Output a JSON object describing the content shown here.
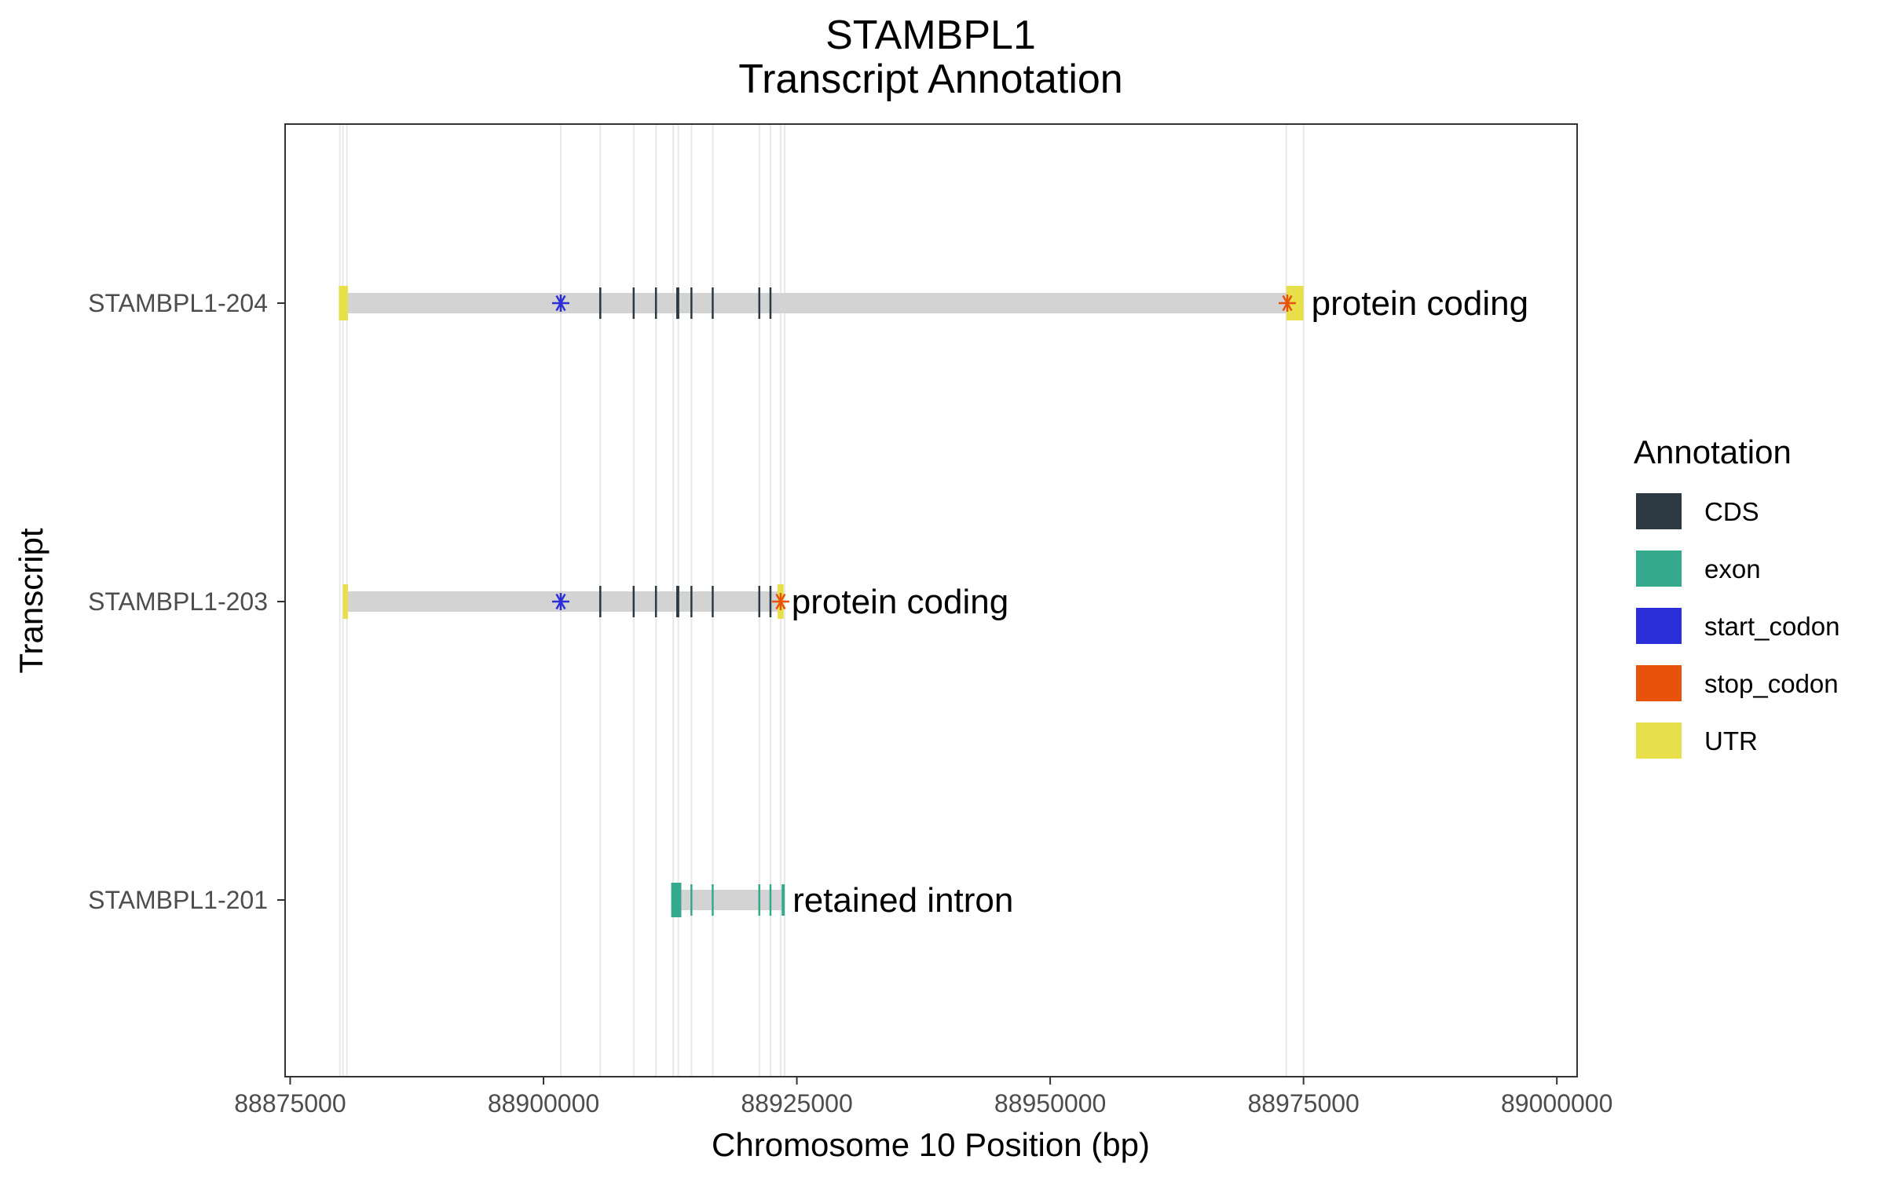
{
  "chart_data": {
    "type": "gene-track",
    "title_lines": [
      "STAMBPL1",
      "Transcript Annotation"
    ],
    "xlabel": "Chromosome 10 Position (bp)",
    "ylabel": "Transcript",
    "xlim": [
      88874500,
      89002000
    ],
    "x_ticks": [
      88875000,
      88900000,
      88925000,
      88950000,
      88975000,
      89000000
    ],
    "x_tick_labels": [
      "88875000",
      "88900000",
      "88925000",
      "88950000",
      "88975000",
      "89000000"
    ],
    "grid": "vertical lines at feature positions",
    "colors": {
      "CDS": "#2d3a44",
      "exon": "#35a98e",
      "start_codon": "#2b2fd9",
      "stop_codon": "#e8530c",
      "UTR": "#e8e04a",
      "intron": "#d3d3d3",
      "grid": "#e8e8e8",
      "panel_border": "#333333"
    },
    "legend": {
      "title": "Annotation",
      "position": "right",
      "items": [
        {
          "key": "CDS",
          "label": "CDS"
        },
        {
          "key": "exon",
          "label": "exon"
        },
        {
          "key": "start_codon",
          "label": "start_codon"
        },
        {
          "key": "stop_codon",
          "label": "stop_codon"
        },
        {
          "key": "UTR",
          "label": "UTR"
        }
      ]
    },
    "transcripts": [
      {
        "name": "STAMBPL1-204",
        "biotype": "protein coding",
        "start": 88880000,
        "end": 88975000,
        "features": [
          {
            "type": "UTR",
            "start": 88879800,
            "end": 88880700
          },
          {
            "type": "CDS",
            "start": 88905500,
            "end": 88905700
          },
          {
            "type": "CDS",
            "start": 88908800,
            "end": 88908950
          },
          {
            "type": "CDS",
            "start": 88911000,
            "end": 88911150
          },
          {
            "type": "CDS",
            "start": 88913100,
            "end": 88913400
          },
          {
            "type": "CDS",
            "start": 88914500,
            "end": 88914650
          },
          {
            "type": "CDS",
            "start": 88916600,
            "end": 88916750
          },
          {
            "type": "CDS",
            "start": 88921200,
            "end": 88921350
          },
          {
            "type": "CDS",
            "start": 88922300,
            "end": 88922450
          },
          {
            "type": "UTR",
            "start": 88973300,
            "end": 88975000
          }
        ],
        "start_codon": 88901700,
        "stop_codon": 88973400
      },
      {
        "name": "STAMBPL1-203",
        "biotype": "protein coding",
        "start": 88880200,
        "end": 88923700,
        "features": [
          {
            "type": "UTR",
            "start": 88880200,
            "end": 88880700
          },
          {
            "type": "CDS",
            "start": 88905500,
            "end": 88905700
          },
          {
            "type": "CDS",
            "start": 88908800,
            "end": 88908950
          },
          {
            "type": "CDS",
            "start": 88911000,
            "end": 88911150
          },
          {
            "type": "CDS",
            "start": 88913100,
            "end": 88913400
          },
          {
            "type": "CDS",
            "start": 88914500,
            "end": 88914650
          },
          {
            "type": "CDS",
            "start": 88916600,
            "end": 88916750
          },
          {
            "type": "CDS",
            "start": 88921200,
            "end": 88921350
          },
          {
            "type": "CDS",
            "start": 88922300,
            "end": 88922450
          },
          {
            "type": "UTR",
            "start": 88923100,
            "end": 88923700
          }
        ],
        "start_codon": 88901700,
        "stop_codon": 88923400
      },
      {
        "name": "STAMBPL1-201",
        "biotype": "retained intron",
        "start": 88912600,
        "end": 88923800,
        "features": [
          {
            "type": "exon",
            "start": 88912600,
            "end": 88913600
          },
          {
            "type": "exon",
            "start": 88914500,
            "end": 88914650
          },
          {
            "type": "exon",
            "start": 88916600,
            "end": 88916750
          },
          {
            "type": "exon",
            "start": 88921200,
            "end": 88921350
          },
          {
            "type": "exon",
            "start": 88922300,
            "end": 88922450
          },
          {
            "type": "exon",
            "start": 88923500,
            "end": 88923800
          }
        ],
        "start_codon": null,
        "stop_codon": null
      }
    ],
    "gridlines_x": [
      88879900,
      88880200,
      88880600,
      88901700,
      88905600,
      88908900,
      88911100,
      88912800,
      88913300,
      88914600,
      88916700,
      88921300,
      88922400,
      88923400,
      88923800,
      88973300,
      88975000
    ]
  }
}
